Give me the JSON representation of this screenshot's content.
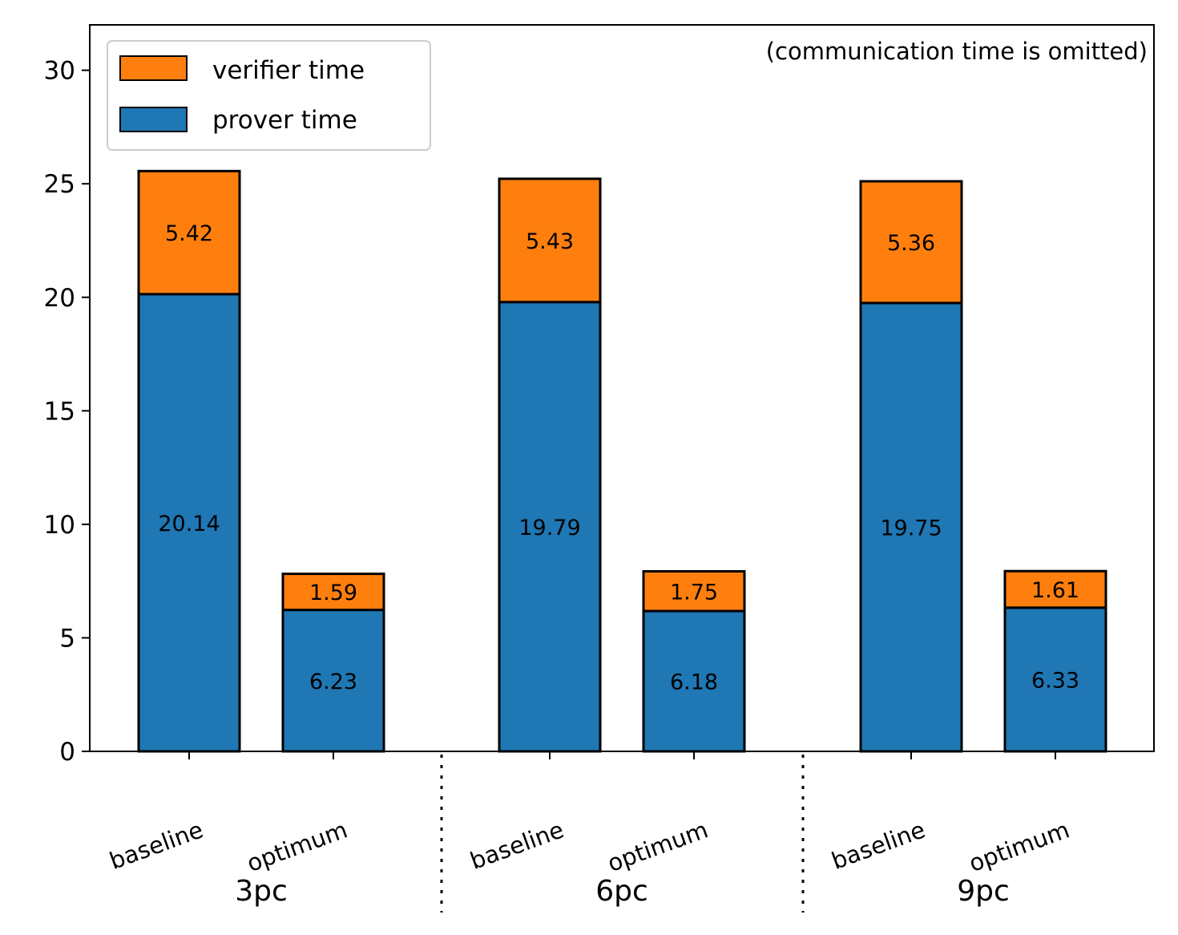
{
  "chart_data": {
    "type": "bar",
    "stacked": true,
    "annotation": "(communication time is omitted)",
    "groups": [
      "3pc",
      "6pc",
      "9pc"
    ],
    "categories": [
      "baseline",
      "optimum",
      "baseline",
      "optimum",
      "baseline",
      "optimum"
    ],
    "series": [
      {
        "name": "prover time",
        "color": "#1f77b4",
        "values": [
          20.14,
          6.23,
          19.79,
          6.18,
          19.75,
          6.33
        ]
      },
      {
        "name": "verifier time",
        "color": "#ff7f0e",
        "values": [
          5.42,
          1.59,
          5.43,
          1.75,
          5.36,
          1.61
        ]
      }
    ],
    "data_labels": {
      "prover time": [
        "20.14",
        "6.23",
        "19.79",
        "6.18",
        "19.75",
        "6.33"
      ],
      "verifier time": [
        "5.42",
        "1.59",
        "5.43",
        "1.75",
        "5.36",
        "1.61"
      ]
    },
    "ylim": [
      0,
      32
    ],
    "yticks": [
      0,
      5,
      10,
      15,
      20,
      25,
      30
    ],
    "legend": {
      "position": "top-left",
      "entries": [
        "verifier time",
        "prover time"
      ]
    },
    "group_separators": "dotted",
    "grid": false
  }
}
